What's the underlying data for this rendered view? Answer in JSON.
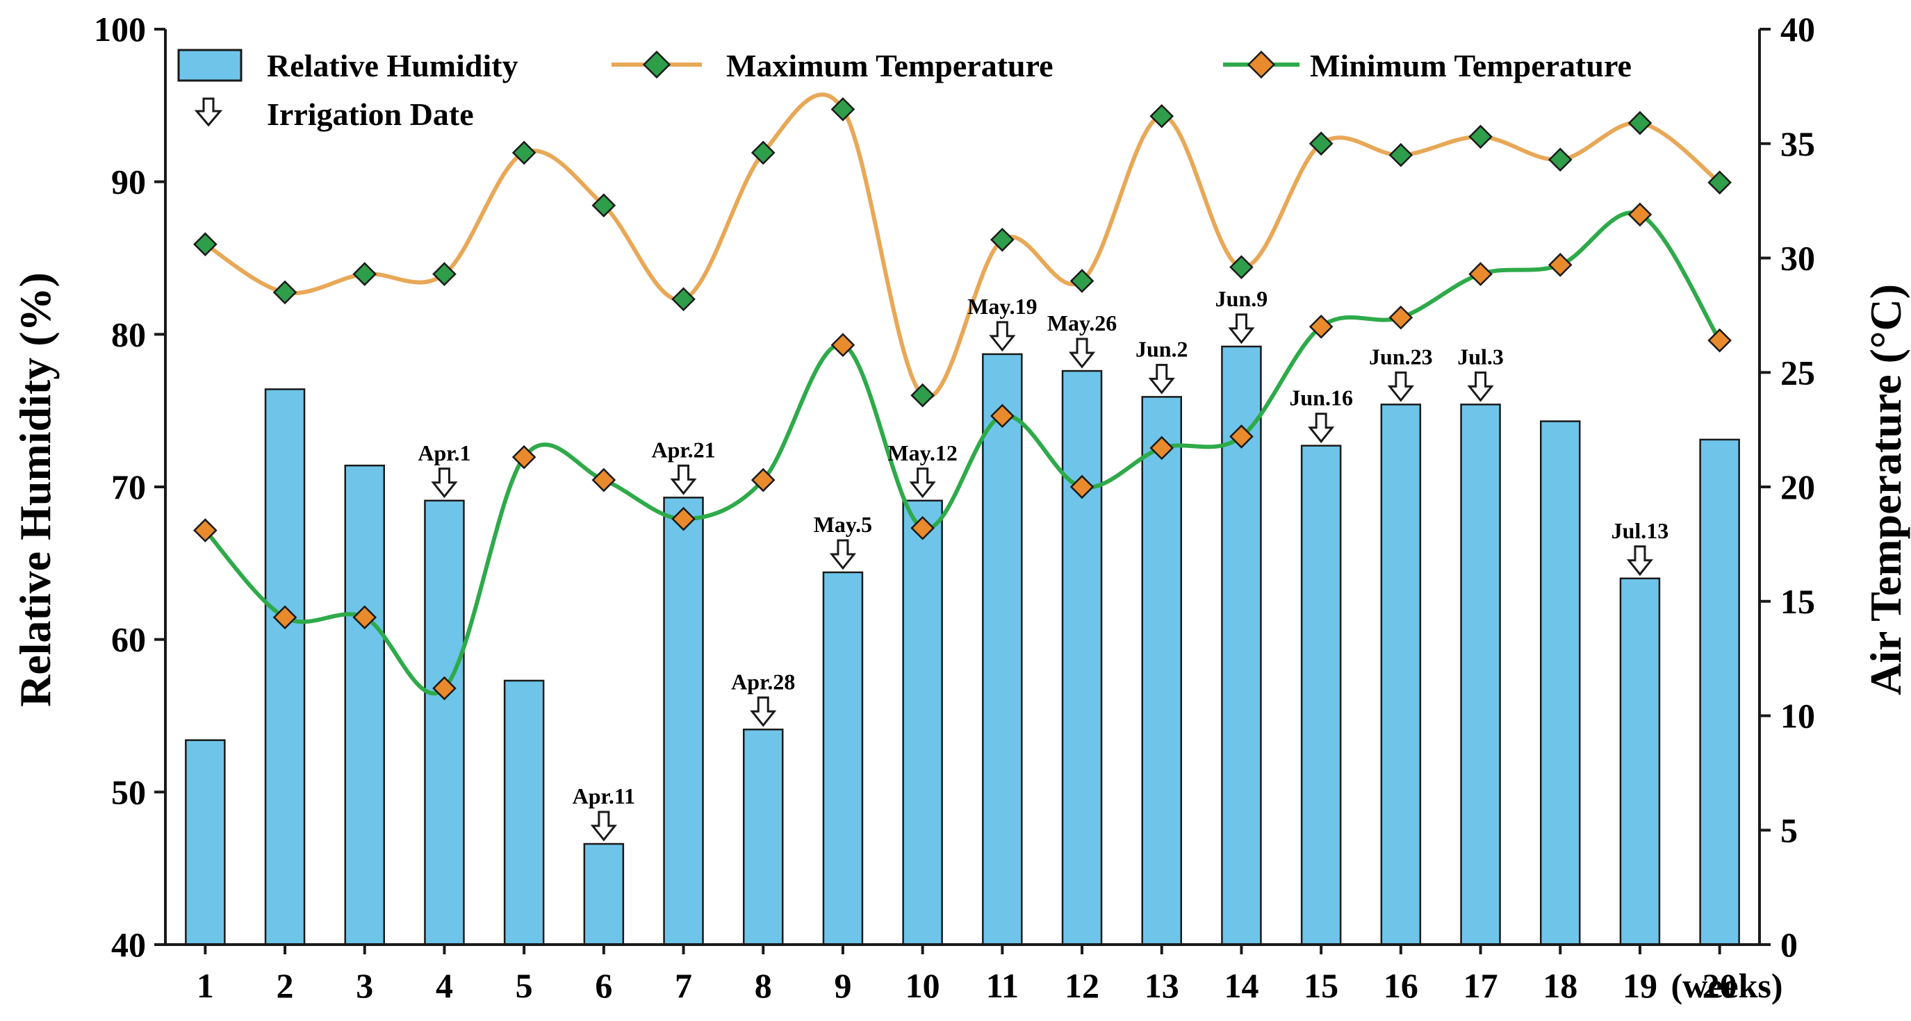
{
  "chart_data": {
    "type": "bar+line",
    "x": [
      1,
      2,
      3,
      4,
      5,
      6,
      7,
      8,
      9,
      10,
      11,
      12,
      13,
      14,
      15,
      16,
      17,
      18,
      19,
      20
    ],
    "x_unit_label": "(weeks)",
    "left_axis": {
      "title": "Relative Humidity (%)",
      "ylim": [
        40,
        100
      ],
      "ticks": [
        40,
        50,
        60,
        70,
        80,
        90,
        100
      ]
    },
    "right_axis": {
      "title": "Air Temperature (°C)",
      "ylim": [
        0,
        40
      ],
      "ticks": [
        0,
        5,
        10,
        15,
        20,
        25,
        30,
        35,
        40
      ]
    },
    "series": [
      {
        "name": "Relative Humidity",
        "kind": "bar",
        "axis": "left",
        "color": "#6EC5E9",
        "values": [
          53.4,
          76.4,
          71.4,
          69.1,
          57.3,
          46.6,
          69.3,
          54.1,
          64.4,
          69.1,
          78.7,
          77.6,
          75.9,
          79.2,
          72.7,
          75.4,
          75.4,
          74.3,
          64.0,
          73.1
        ]
      },
      {
        "name": "Maximum Temperature",
        "kind": "line",
        "axis": "right",
        "line_color": "#E8A857",
        "marker_color": "#2E9E4A",
        "values": [
          30.6,
          28.5,
          29.3,
          29.3,
          34.6,
          32.3,
          28.2,
          34.6,
          36.5,
          24.0,
          30.8,
          29.0,
          36.2,
          29.6,
          35.0,
          34.5,
          35.3,
          34.3,
          35.9,
          33.3
        ]
      },
      {
        "name": "Minimum Temperature",
        "kind": "line",
        "axis": "right",
        "line_color": "#2EAA4A",
        "marker_color": "#E98A2C",
        "values": [
          18.1,
          14.3,
          14.3,
          11.2,
          21.3,
          20.3,
          18.6,
          20.3,
          26.2,
          18.2,
          23.1,
          20.0,
          21.7,
          22.2,
          27.0,
          27.4,
          29.3,
          29.7,
          31.9,
          26.4
        ]
      }
    ],
    "irrigation": {
      "legend_label": "Irrigation Date",
      "events": [
        {
          "week": 4,
          "label": "Apr.1"
        },
        {
          "week": 6,
          "label": "Apr.11"
        },
        {
          "week": 7,
          "label": "Apr.21"
        },
        {
          "week": 8,
          "label": "Apr.28"
        },
        {
          "week": 9,
          "label": "May.5"
        },
        {
          "week": 10,
          "label": "May.12"
        },
        {
          "week": 11,
          "label": "May.19"
        },
        {
          "week": 12,
          "label": "May.26"
        },
        {
          "week": 13,
          "label": "Jun.2"
        },
        {
          "week": 14,
          "label": "Jun.9"
        },
        {
          "week": 15,
          "label": "Jun.16"
        },
        {
          "week": 16,
          "label": "Jun.23"
        },
        {
          "week": 17,
          "label": "Jul.3"
        },
        {
          "week": 19,
          "label": "Jul.13"
        }
      ]
    },
    "legend": {
      "rh": "Relative Humidity",
      "tmax": "Maximum Temperature",
      "tmin": "Minimum Temperature",
      "irrigation": "Irrigation Date"
    }
  }
}
